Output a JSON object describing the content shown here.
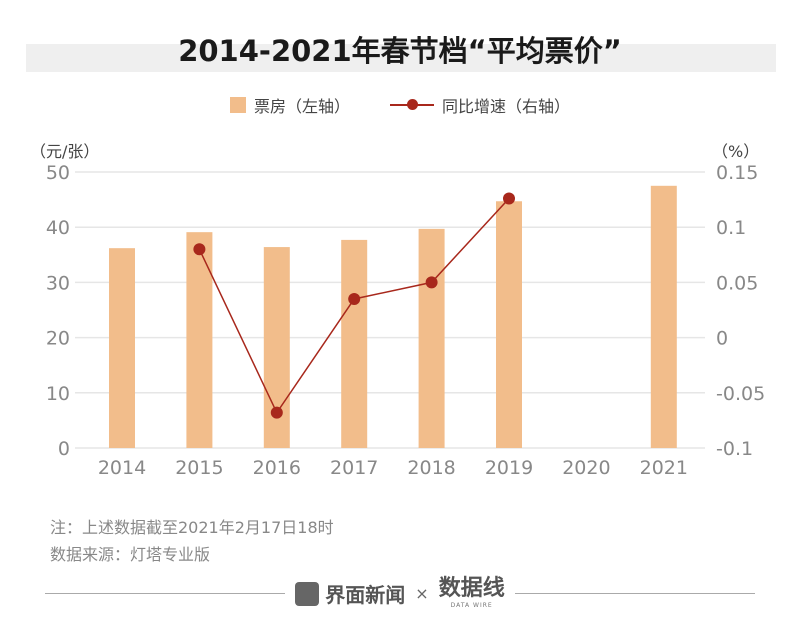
{
  "chart_data": {
    "type": "bar",
    "title": "2014-2021年春节档“平均票价”",
    "categories": [
      "2014",
      "2015",
      "2016",
      "2017",
      "2018",
      "2019",
      "2020",
      "2021"
    ],
    "series": [
      {
        "name": "票房（左轴）",
        "type": "bar",
        "axis": "left",
        "values": [
          36.2,
          39.1,
          36.4,
          37.7,
          39.7,
          44.7,
          null,
          47.5
        ],
        "color": "#f2bd8b"
      },
      {
        "name": "同比增速（右轴）",
        "type": "line",
        "axis": "right",
        "values": [
          null,
          0.08,
          -0.068,
          0.035,
          0.05,
          0.126,
          null,
          null
        ],
        "color": "#a8281c"
      }
    ],
    "left_axis": {
      "label": "（元/张）",
      "ylim": [
        0,
        50
      ],
      "ticks": [
        "0",
        "10",
        "20",
        "30",
        "40",
        "50"
      ]
    },
    "right_axis": {
      "label": "（%）",
      "ylim": [
        -0.1,
        0.15
      ],
      "ticks": [
        "-0.1",
        "-0.05",
        "0",
        "0.05",
        "0.1",
        "0.15"
      ]
    },
    "grid": true,
    "legend": "top"
  },
  "notes": [
    "注：上述数据截至2021年2月17日18时",
    "数据来源：灯塔专业版"
  ],
  "footer": {
    "brand1": "界面新闻",
    "times": "×",
    "brand2": "数据线",
    "brand2_sub": "DATA WIRE"
  }
}
